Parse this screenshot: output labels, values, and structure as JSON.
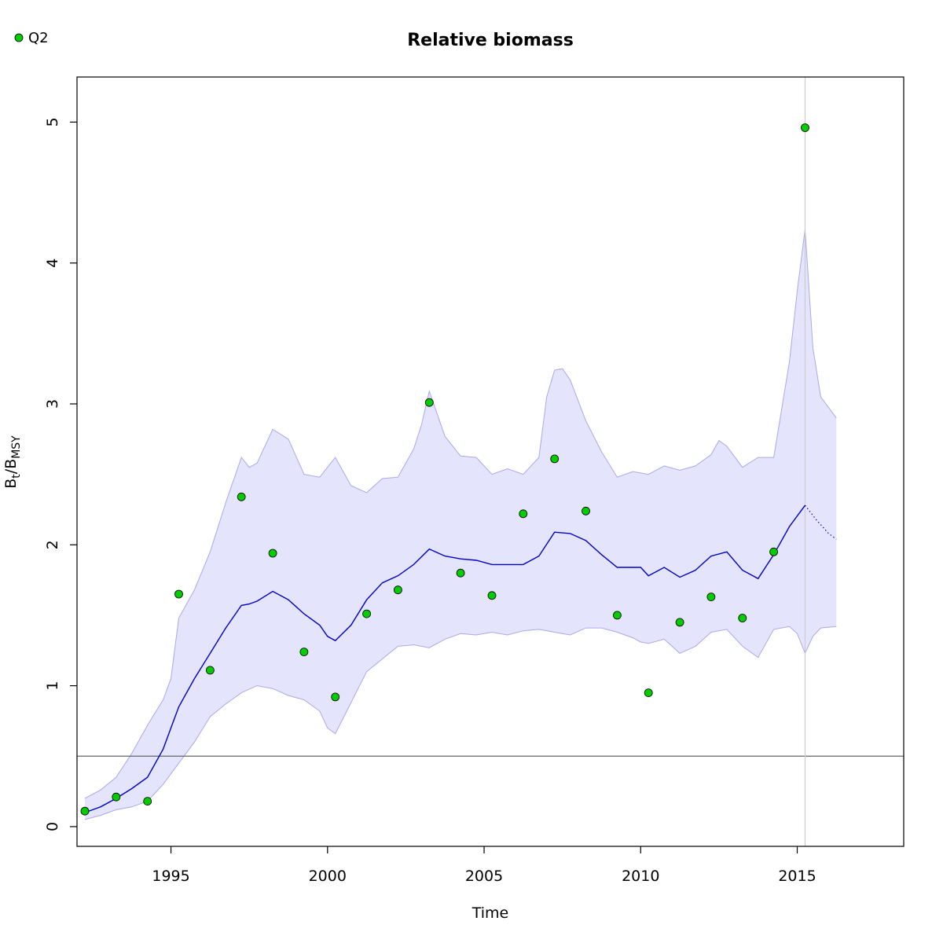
{
  "chart_data": {
    "type": "line",
    "title": "Relative biomass",
    "xlabel": "Time",
    "ylabel_main": "B",
    "ylabel_sub_t": "t",
    "ylabel_slash": "/B",
    "ylabel_sub_msy": "MSY",
    "xlim": [
      1992.0,
      2018.4
    ],
    "ylim": [
      -0.14,
      5.32
    ],
    "xticks": [
      1995,
      2000,
      2005,
      2010,
      2015
    ],
    "yticks": [
      0,
      1,
      2,
      3,
      4,
      5
    ],
    "legend_position": "top-left",
    "reference_line_y": 0.5,
    "vertical_line_x": 2015.25,
    "colors": {
      "median_line": "#0000cc",
      "ci_fill": "#e4e4fc",
      "ci_edge": "#a8a8f0",
      "points": "#00cc00",
      "reference_line": "#666666",
      "vertical_line": "#cccccc"
    },
    "series": [
      {
        "name": "Q2",
        "kind": "points",
        "x": [
          1992.25,
          1993.25,
          1994.25,
          1995.25,
          1996.25,
          1997.25,
          1998.25,
          1999.25,
          2000.25,
          2001.25,
          2002.25,
          2003.25,
          2004.25,
          2005.25,
          2006.25,
          2007.25,
          2008.25,
          2009.25,
          2010.25,
          2011.25,
          2012.25,
          2013.25,
          2014.25,
          2015.25
        ],
        "values": [
          0.11,
          0.21,
          0.18,
          1.65,
          1.11,
          2.34,
          1.94,
          1.24,
          0.92,
          1.51,
          1.68,
          3.01,
          1.8,
          1.64,
          2.22,
          2.61,
          2.24,
          1.5,
          0.95,
          1.45,
          1.63,
          1.48,
          1.95,
          4.96
        ]
      },
      {
        "kind": "median",
        "x": [
          1992.25,
          1992.75,
          1993.25,
          1993.75,
          1994.25,
          1994.75,
          1995.0,
          1995.25,
          1995.75,
          1996.25,
          1996.75,
          1997.25,
          1997.5,
          1997.75,
          1998.25,
          1998.75,
          1999.25,
          1999.75,
          2000.0,
          2000.25,
          2000.75,
          2001.25,
          2001.75,
          2002.25,
          2002.75,
          2003.25,
          2003.75,
          2004.25,
          2004.75,
          2005.25,
          2005.75,
          2006.25,
          2006.75,
          2007.25,
          2007.75,
          2008.25,
          2008.75,
          2009.25,
          2009.75,
          2010.0,
          2010.25,
          2010.75,
          2011.25,
          2011.75,
          2012.25,
          2012.75,
          2013.25,
          2013.75,
          2014.25,
          2014.75,
          2015.25
        ],
        "values": [
          0.1,
          0.14,
          0.2,
          0.27,
          0.35,
          0.55,
          0.7,
          0.85,
          1.05,
          1.23,
          1.41,
          1.57,
          1.58,
          1.6,
          1.67,
          1.61,
          1.51,
          1.43,
          1.35,
          1.32,
          1.43,
          1.61,
          1.73,
          1.78,
          1.86,
          1.97,
          1.92,
          1.9,
          1.89,
          1.86,
          1.86,
          1.86,
          1.92,
          2.09,
          2.08,
          2.03,
          1.93,
          1.84,
          1.84,
          1.84,
          1.78,
          1.84,
          1.77,
          1.82,
          1.92,
          1.95,
          1.82,
          1.76,
          1.93,
          2.13,
          2.28
        ]
      },
      {
        "kind": "median_forecast",
        "x": [
          2015.25,
          2015.6,
          2016.0,
          2016.25
        ],
        "values": [
          2.28,
          2.18,
          2.08,
          2.04
        ]
      },
      {
        "kind": "ci_upper",
        "x": [
          1992.25,
          1992.75,
          1993.25,
          1993.75,
          1994.25,
          1994.75,
          1995.0,
          1995.25,
          1995.75,
          1996.25,
          1996.75,
          1997.25,
          1997.5,
          1997.75,
          1998.0,
          1998.25,
          1998.75,
          1999.25,
          1999.75,
          2000.25,
          2000.75,
          2001.25,
          2001.75,
          2002.25,
          2002.75,
          2003.0,
          2003.25,
          2003.75,
          2004.25,
          2004.75,
          2005.25,
          2005.75,
          2006.25,
          2006.75,
          2007.0,
          2007.25,
          2007.5,
          2007.75,
          2008.25,
          2008.75,
          2009.25,
          2009.75,
          2010.25,
          2010.75,
          2011.25,
          2011.75,
          2012.25,
          2012.5,
          2012.75,
          2013.25,
          2013.75,
          2014.25,
          2014.75,
          2015.0,
          2015.25,
          2015.5,
          2015.75,
          2016.25
        ],
        "values": [
          0.2,
          0.26,
          0.35,
          0.52,
          0.72,
          0.9,
          1.05,
          1.48,
          1.68,
          1.95,
          2.3,
          2.62,
          2.55,
          2.58,
          2.7,
          2.82,
          2.75,
          2.5,
          2.48,
          2.62,
          2.42,
          2.37,
          2.47,
          2.48,
          2.68,
          2.85,
          3.09,
          2.77,
          2.63,
          2.62,
          2.5,
          2.54,
          2.5,
          2.62,
          3.05,
          3.24,
          3.25,
          3.17,
          2.88,
          2.66,
          2.48,
          2.52,
          2.5,
          2.56,
          2.53,
          2.56,
          2.64,
          2.74,
          2.7,
          2.55,
          2.62,
          2.62,
          3.3,
          3.8,
          4.24,
          3.4,
          3.05,
          2.9
        ]
      },
      {
        "kind": "ci_lower",
        "x": [
          1992.25,
          1992.75,
          1993.25,
          1993.75,
          1994.25,
          1994.75,
          1995.25,
          1995.75,
          1996.25,
          1996.75,
          1997.25,
          1997.75,
          1998.25,
          1998.75,
          1999.25,
          1999.75,
          2000.0,
          2000.25,
          2000.75,
          2001.25,
          2001.75,
          2002.25,
          2002.75,
          2003.25,
          2003.75,
          2004.25,
          2004.75,
          2005.25,
          2005.75,
          2006.25,
          2006.75,
          2007.25,
          2007.75,
          2008.25,
          2008.75,
          2009.25,
          2009.75,
          2010.0,
          2010.25,
          2010.75,
          2011.25,
          2011.75,
          2012.25,
          2012.75,
          2013.25,
          2013.75,
          2014.25,
          2014.75,
          2015.0,
          2015.25,
          2015.5,
          2015.75,
          2016.25
        ],
        "values": [
          0.05,
          0.08,
          0.12,
          0.14,
          0.18,
          0.3,
          0.45,
          0.6,
          0.78,
          0.87,
          0.95,
          1.0,
          0.98,
          0.93,
          0.9,
          0.82,
          0.7,
          0.66,
          0.88,
          1.1,
          1.19,
          1.28,
          1.29,
          1.27,
          1.33,
          1.37,
          1.36,
          1.38,
          1.36,
          1.39,
          1.4,
          1.38,
          1.36,
          1.41,
          1.41,
          1.38,
          1.34,
          1.31,
          1.3,
          1.33,
          1.23,
          1.28,
          1.38,
          1.4,
          1.28,
          1.2,
          1.4,
          1.42,
          1.37,
          1.23,
          1.35,
          1.41,
          1.42
        ]
      }
    ]
  }
}
